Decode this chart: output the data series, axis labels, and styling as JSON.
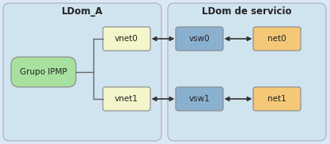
{
  "fig_width": 4.17,
  "fig_height": 1.82,
  "dpi": 100,
  "bg_outer": "#dce8f3",
  "bg_ldom_a": "#d0e4f0",
  "bg_ldom_svc": "#d0e4f0",
  "color_vnet": "#f5f5cc",
  "color_vsw": "#8ab0d0",
  "color_net": "#f5c878",
  "color_grupo": "#a8e0a0",
  "border_ldom": "#aabbcc",
  "border_box": "#888888",
  "title_ldom_a": "LDom_A",
  "title_ldom_svc": "LDom de servicio",
  "label_vnet0": "vnet0",
  "label_vnet1": "vnet1",
  "label_vsw0": "vsw0",
  "label_vsw1": "vsw1",
  "label_net0": "net0",
  "label_net1": "net1",
  "label_grupo": "Grupo IPMP",
  "font_size_title": 8.5,
  "font_size_box": 7.5,
  "arrow_color": "#333333",
  "line_color": "#666666"
}
